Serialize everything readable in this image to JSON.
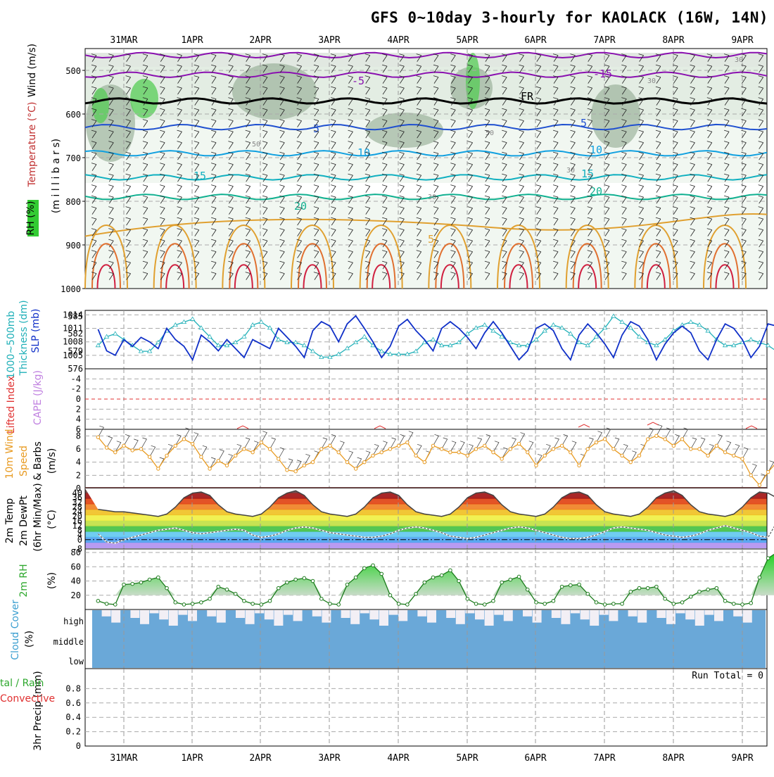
{
  "title": "GFS 0~10day 3-hourly for KAOLACK (16W, 14N)",
  "dates": [
    "31MAR",
    "1APR",
    "2APR",
    "3APR",
    "4APR",
    "5APR",
    "6APR",
    "7APR",
    "8APR",
    "9APR"
  ],
  "colors": {
    "rh_low": "#e6f1e6",
    "rh_mid": "#c9d6c9",
    "rh_high": "#8fa88f",
    "rh_sat": "#55cc55",
    "slp": "#1030c8",
    "thickness": "#20b0b8",
    "lifted_index": "#e03030",
    "cape": "#c080e0",
    "wind_speed": "#e89a20",
    "cloud": "#6aa8d8",
    "rh2m": "#2ea82e",
    "freezing": "#000000"
  },
  "panels": {
    "upper": {
      "ylabel_wind": "Wind (m/s)",
      "ylabel_temp": "Temperature (°C)",
      "ylabel_rh": "RH (%)",
      "ylabel_p": "(m i l l i b a r s)",
      "yticks": [
        "500",
        "600",
        "700",
        "800",
        "900",
        "1000"
      ],
      "contour_labels": [
        "-5",
        "-5",
        "FR",
        "5",
        "5",
        "10",
        "10",
        "15",
        "15",
        "20",
        "20",
        "5",
        "30",
        "30",
        "30",
        "50",
        "30",
        "-15"
      ]
    },
    "slp": {
      "ylabel_left": "1000~500mb",
      "ylabel_left2": "Thickness (dm)",
      "ylabel_right": "SLP (mb)",
      "ticks_left": [
        "585",
        "582",
        "579",
        "576"
      ],
      "ticks_right": [
        "1014",
        "1011",
        "1008",
        "1005"
      ]
    },
    "li": {
      "ylabel_left": "Lifted Index",
      "ylabel_right": "CAPE (J/kg)",
      "ticks": [
        "-4",
        "-2",
        "0",
        "2",
        "4",
        "6"
      ]
    },
    "wind10": {
      "ylabel1": "10m Wind",
      "ylabel2": "Speed",
      "ylabel3": "& Barbs",
      "ylabel4": "(m/s)",
      "ticks": [
        "8",
        "6",
        "4",
        "2",
        "0"
      ]
    },
    "temp2m": {
      "ylabel1": "2m Temp",
      "ylabel2": "2m DewPt",
      "ylabel3": "(6hr Min/Max)",
      "ylabel4": "(°C)",
      "ticks": [
        "40",
        "32",
        "24",
        "16",
        "8",
        "0",
        "-8",
        "36",
        "28",
        "20",
        "12",
        "4"
      ]
    },
    "rh2m": {
      "ylabel1": "2m RH",
      "ylabel2": "(%)",
      "ticks": [
        "80",
        "60",
        "40",
        "20"
      ]
    },
    "cloud": {
      "ylabel1": "Cloud Cover",
      "ylabel2": "(%)",
      "levels": [
        "high",
        "middle",
        "low"
      ]
    },
    "precip": {
      "ylabel_total": "tal / Rain",
      "ylabel_conv": "Convective",
      "ylabel_axis": "3hr Precip (mm)",
      "ticks": [
        "0.8",
        "0.6",
        "0.4",
        "0.2",
        "0"
      ],
      "run_total": "Run Total = 0"
    }
  },
  "chart_data": [
    {
      "type": "line",
      "panel": "slp",
      "title": "",
      "series": [
        {
          "name": "SLP (mb)",
          "unit": "mb",
          "values": [
            1010.8,
            1006.0,
            1005.0,
            1008.5,
            1007.0,
            1009.0,
            1008.0,
            1006.5,
            1011.0,
            1008.5,
            1007.0,
            1004.0,
            1009.5,
            1008.0,
            1006.0,
            1008.5,
            1006.5,
            1004.5,
            1008.5,
            1007.5,
            1006.5,
            1011.0,
            1009.0,
            1007.0,
            1004.5,
            1010.5,
            1012.5,
            1011.5,
            1008.0,
            1012.0,
            1013.8,
            1011.0,
            1008.0,
            1004.5,
            1007.0,
            1011.5,
            1013.0,
            1010.5,
            1008.5,
            1006.0,
            1011.0,
            1012.5,
            1011.0,
            1009.0,
            1006.5,
            1010.0,
            1012.5,
            1010.0,
            1007.0,
            1004.0,
            1006.0,
            1011.0,
            1012.0,
            1010.5,
            1006.5,
            1004.0,
            1009.5,
            1012.0,
            1010.0,
            1007.5,
            1004.5,
            1009.5,
            1012.5,
            1011.5,
            1008.5,
            1004.0,
            1007.5,
            1010.0,
            1011.5,
            1010.0,
            1006.0,
            1004.0,
            1008.5,
            1012.0,
            1011.0,
            1008.5,
            1004.5,
            1007.0,
            1012.0,
            1011.5,
            1012.5
          ]
        },
        {
          "name": "1000~500mb Thickness (dm)",
          "unit": "dm",
          "values": [
            580.0,
            581.5,
            582.0,
            581.0,
            580.0,
            579.0,
            579.0,
            580.5,
            582.5,
            583.5,
            584.0,
            584.5,
            583.0,
            581.5,
            580.0,
            580.0,
            580.5,
            581.5,
            583.5,
            584.0,
            583.0,
            581.0,
            580.5,
            580.5,
            580.0,
            579.0,
            578.0,
            578.0,
            578.5,
            579.5,
            580.5,
            581.5,
            580.0,
            579.0,
            578.5,
            578.5,
            578.5,
            579.0,
            580.5,
            581.0,
            580.0,
            580.0,
            580.5,
            582.0,
            583.0,
            583.5,
            582.5,
            581.5,
            580.5,
            580.0,
            580.0,
            581.0,
            582.5,
            583.5,
            583.0,
            582.0,
            580.5,
            580.0,
            581.5,
            583.0,
            585.0,
            584.0,
            583.0,
            581.5,
            580.5,
            580.0,
            581.0,
            582.5,
            583.5,
            584.0,
            583.5,
            582.5,
            581.0,
            580.0,
            580.0,
            580.5,
            581.0,
            580.5,
            580.0,
            579.0,
            578.0
          ]
        }
      ],
      "ylim_slp": [
        1002,
        1015
      ],
      "ylim_thickness": [
        576,
        586
      ]
    },
    {
      "type": "line",
      "panel": "wind10",
      "title": "",
      "series": [
        {
          "name": "10m Wind Speed",
          "unit": "m/s",
          "values": [
            7.8,
            6.2,
            5.5,
            6.5,
            5.8,
            6.0,
            4.8,
            3.0,
            5.0,
            6.5,
            7.5,
            6.8,
            4.8,
            3.0,
            4.2,
            3.5,
            5.0,
            6.0,
            5.5,
            7.0,
            6.0,
            4.5,
            2.8,
            2.6,
            3.5,
            4.0,
            6.0,
            6.5,
            5.5,
            4.0,
            3.0,
            4.0,
            5.0,
            5.5,
            6.0,
            6.5,
            7.0,
            5.0,
            4.0,
            6.5,
            6.0,
            5.5,
            5.5,
            5.0,
            6.0,
            6.5,
            5.5,
            4.5,
            6.0,
            6.8,
            5.5,
            3.5,
            5.0,
            6.0,
            6.5,
            5.5,
            3.5,
            6.0,
            7.0,
            7.5,
            6.0,
            5.0,
            4.0,
            5.0,
            7.5,
            8.0,
            7.5,
            6.5,
            7.5,
            6.0,
            6.0,
            5.0,
            6.5,
            5.5,
            5.0,
            4.5,
            2.0,
            0.5,
            2.5,
            4.0,
            2.8
          ]
        }
      ],
      "ylim": [
        0,
        9
      ]
    },
    {
      "type": "area",
      "panel": "temp2m",
      "title": "",
      "series": [
        {
          "name": "2m Temp",
          "unit": "°C",
          "values": [
            26,
            25,
            24,
            24,
            23,
            22,
            21,
            20,
            22,
            28,
            36,
            40,
            41,
            38,
            30,
            24,
            22,
            21,
            20,
            22,
            28,
            36,
            40,
            42,
            38,
            30,
            24,
            22,
            21,
            20,
            22,
            28,
            36,
            40,
            41,
            38,
            30,
            24,
            22,
            21,
            20,
            22,
            28,
            36,
            40,
            41,
            38,
            30,
            24,
            22,
            21,
            20,
            22,
            28,
            36,
            40,
            41,
            38,
            30,
            24,
            22,
            21,
            20,
            22,
            28,
            36,
            40,
            42,
            38,
            30,
            24,
            22,
            21,
            20,
            22,
            28,
            36,
            41,
            40,
            36,
            28
          ]
        },
        {
          "name": "2m DewPt",
          "unit": "°C",
          "values": [
            5,
            -2,
            -3,
            0,
            2,
            4,
            6,
            8,
            9,
            10,
            8,
            6,
            5,
            6,
            7,
            8,
            9,
            8,
            4,
            2,
            3,
            5,
            8,
            10,
            11,
            10,
            8,
            6,
            5,
            4,
            3,
            2,
            2,
            3,
            5,
            8,
            10,
            11,
            10,
            8,
            6,
            3,
            2,
            1,
            2,
            4,
            6,
            8,
            10,
            11,
            10,
            8,
            6,
            4,
            2,
            1,
            1,
            2,
            4,
            7,
            10,
            11,
            10,
            9,
            8,
            6,
            4,
            3,
            2,
            3,
            5,
            8,
            10,
            12,
            10,
            8,
            6,
            3,
            2,
            15,
            18
          ]
        }
      ],
      "ylim": [
        -8,
        44
      ]
    },
    {
      "type": "area",
      "panel": "rh2m",
      "title": "",
      "series": [
        {
          "name": "2m RH",
          "unit": "%",
          "values": [
            12,
            8,
            7,
            35,
            36,
            38,
            42,
            45,
            30,
            10,
            7,
            8,
            10,
            15,
            32,
            28,
            22,
            12,
            8,
            7,
            12,
            30,
            38,
            42,
            44,
            40,
            15,
            8,
            7,
            35,
            45,
            58,
            62,
            50,
            20,
            8,
            7,
            22,
            38,
            45,
            48,
            55,
            40,
            15,
            8,
            7,
            12,
            38,
            42,
            46,
            28,
            10,
            8,
            12,
            32,
            34,
            35,
            22,
            10,
            7,
            8,
            8,
            25,
            30,
            30,
            32,
            15,
            8,
            10,
            18,
            25,
            28,
            30,
            12,
            8,
            7,
            9,
            45,
            72,
            80,
            78
          ]
        }
      ],
      "ylim": [
        0,
        85
      ]
    },
    {
      "type": "bar",
      "panel": "precip",
      "title": "",
      "series": [
        {
          "name": "3hr Precip",
          "unit": "mm",
          "values": [
            0
          ]
        }
      ],
      "ylim": [
        0,
        1
      ]
    }
  ]
}
